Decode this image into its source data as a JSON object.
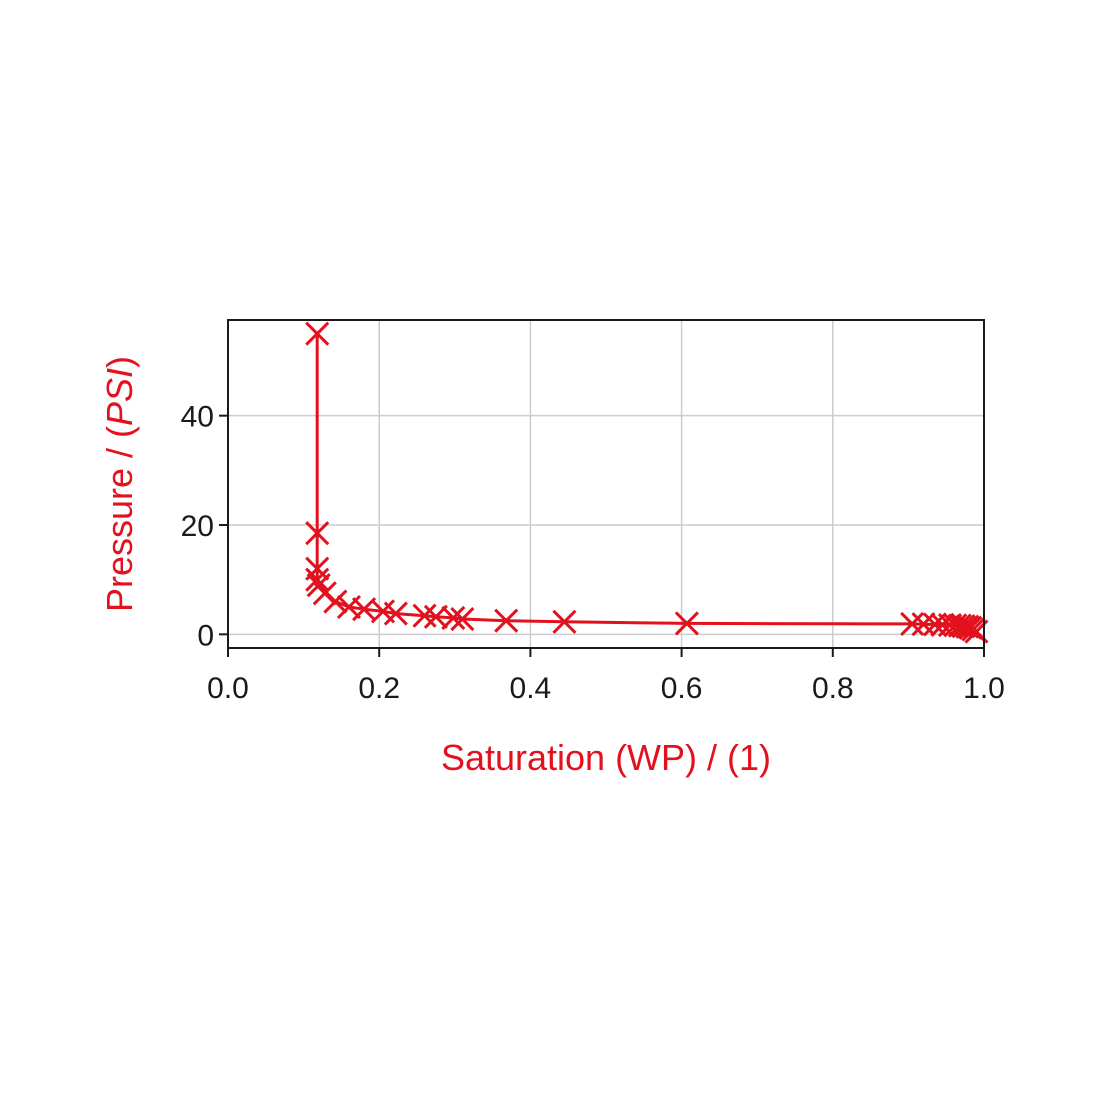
{
  "chart_data": {
    "type": "line",
    "title": "",
    "xlabel": "Saturation (WP) / (1)",
    "ylabel_prefix": "Pressure / (",
    "ylabel_unit": "PSI",
    "ylabel_suffix": ")",
    "xlim": [
      0.0,
      1.0
    ],
    "ylim": [
      -2.5,
      57.5
    ],
    "xticks": [
      0.0,
      0.2,
      0.4,
      0.6,
      0.8,
      1.0
    ],
    "xtick_labels": [
      "0.0",
      "0.2",
      "0.4",
      "0.6",
      "0.8",
      "1.0"
    ],
    "yticks": [
      0,
      20,
      40
    ],
    "ytick_labels": [
      "0",
      "20",
      "40"
    ],
    "grid": true,
    "colors": {
      "series": "#e3101e",
      "label": "#e3101e",
      "axis": "#1a1a1a",
      "grid": "#cccccc"
    },
    "marker": "x",
    "series": [
      {
        "x": [
          0.118,
          0.118,
          0.118,
          0.118,
          0.12,
          0.128,
          0.142,
          0.16,
          0.18,
          0.205,
          0.222,
          0.26,
          0.275,
          0.298,
          0.31,
          0.368,
          0.445,
          0.607,
          0.905,
          0.92,
          0.935,
          0.945,
          0.955,
          0.962,
          0.968,
          0.973,
          0.978,
          0.982,
          0.986,
          0.99
        ],
        "y": [
          55,
          18.5,
          12,
          10,
          9,
          7.5,
          6,
          5,
          4.6,
          4.2,
          3.8,
          3.4,
          3.2,
          3.0,
          2.8,
          2.5,
          2.3,
          2.0,
          1.9,
          1.85,
          1.8,
          1.75,
          1.7,
          1.65,
          1.6,
          1.5,
          1.4,
          1.2,
          0.9,
          0.5
        ]
      }
    ]
  }
}
